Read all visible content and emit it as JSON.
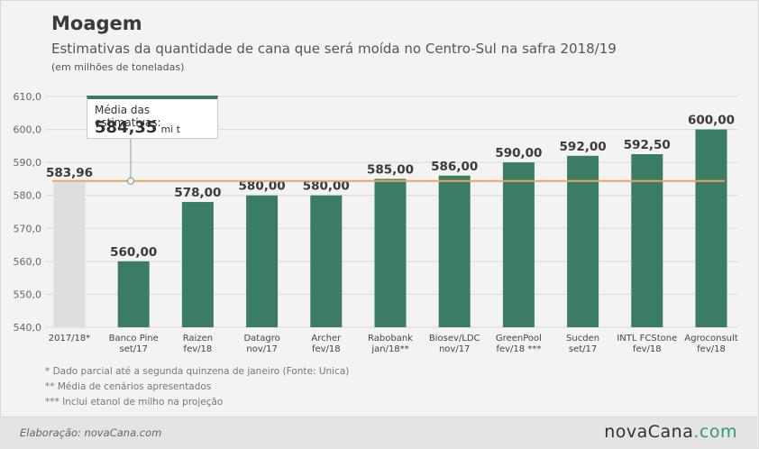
{
  "header": {
    "title": "Moagem",
    "subtitle": "Estimativas da quantidade de cana que será moída no Centro-Sul na safra 2018/19",
    "unit_note": "(em milhões de toneladas)"
  },
  "average_callout": {
    "label": "Média das estimativas:",
    "value": "584,35",
    "unit": "mi t"
  },
  "notes": [
    "* Dado parcial até a segunda quinzena de janeiro (Fonte: Unica)",
    "** Média de cenários apresentados",
    "*** Inclui etanol de milho na projeção"
  ],
  "footer": {
    "credit": "Elaboração: novaCana.com",
    "brand_main": "novaCana",
    "brand_suffix": ".com"
  },
  "colors": {
    "bar": "#3a7d64",
    "reference_bar": "#dedede",
    "average_line": "#e7a75e",
    "grid": "#d9d9d9"
  },
  "chart_data": {
    "type": "bar",
    "categories": [
      [
        "2017/18*"
      ],
      [
        "Banco Pine",
        "set/17"
      ],
      [
        "Raizen",
        "fev/18"
      ],
      [
        "Datagro",
        "nov/17"
      ],
      [
        "Archer",
        "fev/18"
      ],
      [
        "Rabobank",
        "jan/18**"
      ],
      [
        "Biosev/LDC",
        "nov/17"
      ],
      [
        "GreenPool",
        "fev/18 ***"
      ],
      [
        "Sucden",
        "set/17"
      ],
      [
        "INTL FCStone",
        "fev/18"
      ],
      [
        "Agroconsult",
        "fev/18"
      ]
    ],
    "values": [
      583.96,
      560.0,
      578.0,
      580.0,
      580.0,
      585.0,
      586.0,
      590.0,
      592.0,
      592.5,
      600.0
    ],
    "value_labels": [
      "583,96",
      "560,00",
      "578,00",
      "580,00",
      "580,00",
      "585,00",
      "586,00",
      "590,00",
      "592,00",
      "592,50",
      "600,00"
    ],
    "average": 584.35,
    "ylim": [
      540,
      610
    ],
    "yticks": [
      540,
      550,
      560,
      570,
      580,
      590,
      600,
      610
    ],
    "ytick_labels": [
      "540,0",
      "550,0",
      "560,0",
      "570,0",
      "580,0",
      "590,0",
      "600,0",
      "610,0"
    ],
    "grid": true
  }
}
